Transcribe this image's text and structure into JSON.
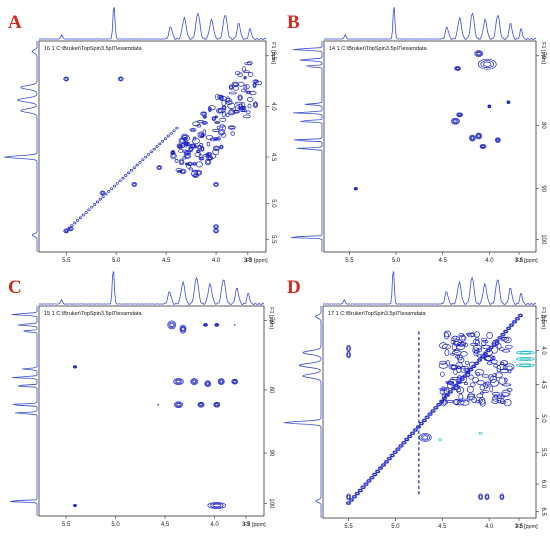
{
  "panels": [
    {
      "label": "A",
      "header": "16  1  C:\\Bruker\\TopSpin3.5pl7\\examdata",
      "f2_axis_label": "F2 [ppm]",
      "f1_axis_label": "F1 [ppm]",
      "f2_ticks": [
        "5.5",
        "5.0",
        "4.5",
        "4.0",
        "3.5"
      ],
      "f1_ticks": [
        "3.5",
        "4.0",
        "4.5",
        "5.0",
        "5.5"
      ]
    },
    {
      "label": "B",
      "header": "14  1  C:\\Bruker\\TopSpin3.5pl7\\examdata",
      "f2_axis_label": "F2 [ppm]",
      "f1_axis_label": "F1 [ppm]",
      "f2_ticks": [
        "5.5",
        "5.0",
        "4.5",
        "4.0",
        "3.5"
      ],
      "f1_ticks": [
        "70",
        "80",
        "90",
        "100"
      ]
    },
    {
      "label": "C",
      "header": "15  1  C:\\Bruker\\TopSpin3.5pl7\\examdata",
      "f2_axis_label": "F2 [ppm]",
      "f1_axis_label": "F1 [ppm]",
      "f2_ticks": [
        "5.5",
        "5.0",
        "4.5",
        "4.0",
        "3.5"
      ],
      "f1_ticks": [
        "70",
        "80",
        "90",
        "100"
      ]
    },
    {
      "label": "D",
      "header": "17  1  C:\\Bruker\\TopSpin3.5pl7\\examdata",
      "f2_axis_label": "F2 [ppm]",
      "f1_axis_label": "F1 [ppm]",
      "f2_ticks": [
        "5.5",
        "5.0",
        "4.5",
        "4.0",
        "3.5"
      ],
      "f1_ticks": [
        "3.5",
        "4.0",
        "4.5",
        "5.0",
        "5.5",
        "6.0",
        "6.5"
      ]
    }
  ],
  "colors": {
    "contour": "#1a22c8",
    "negative_contour": "#1fb8c8",
    "label": "#d42a1e",
    "projection": "#3b4fd6"
  },
  "chart_data": [
    {
      "panel": "A",
      "type": "heatmap",
      "experiment": "COSY",
      "x_ppm_range": [
        5.8,
        3.1
      ],
      "y_ppm_range": [
        3.1,
        5.8
      ],
      "peaks": [
        {
          "x": 5.32,
          "y": 5.32
        },
        {
          "x": 5.32,
          "y": 3.6
        },
        {
          "x": 4.72,
          "y": 3.6
        },
        {
          "x": 3.6,
          "y": 5.32
        },
        {
          "x": 4.85,
          "y": 4.85
        },
        {
          "x": 4.65,
          "y": 4.65
        },
        {
          "x": 3.55,
          "y": 4.9
        },
        {
          "x": 3.9,
          "y": 3.9
        },
        {
          "x": 3.6,
          "y": 3.6
        }
      ]
    },
    {
      "panel": "B",
      "type": "heatmap",
      "experiment": "HSQC",
      "x_ppm_range": [
        5.8,
        3.1
      ],
      "y_ppm_range": [
        62,
        105
      ],
      "peaks": [
        {
          "x": 3.7,
          "y": 64
        },
        {
          "x": 4.05,
          "y": 77
        },
        {
          "x": 3.9,
          "y": 80
        },
        {
          "x": 3.75,
          "y": 82
        },
        {
          "x": 4.35,
          "y": 76
        },
        {
          "x": 5.35,
          "y": 94
        }
      ]
    },
    {
      "panel": "C",
      "type": "heatmap",
      "experiment": "HMBC",
      "x_ppm_range": [
        5.8,
        3.1
      ],
      "y_ppm_range": [
        62,
        105
      ],
      "peaks": [
        {
          "x": 4.0,
          "y": 65
        },
        {
          "x": 3.7,
          "y": 65
        },
        {
          "x": 5.3,
          "y": 73
        },
        {
          "x": 4.0,
          "y": 78
        },
        {
          "x": 3.8,
          "y": 78
        },
        {
          "x": 3.6,
          "y": 78
        },
        {
          "x": 4.0,
          "y": 82
        },
        {
          "x": 3.7,
          "y": 82
        },
        {
          "x": 5.3,
          "y": 101
        },
        {
          "x": 3.7,
          "y": 101
        }
      ]
    },
    {
      "panel": "D",
      "type": "heatmap",
      "experiment": "TOCSY",
      "x_ppm_range": [
        5.8,
        3.1
      ],
      "y_ppm_range": [
        3.1,
        6.6
      ],
      "peaks": [
        {
          "x": 5.32,
          "y": 6.35
        },
        {
          "x": 5.32,
          "y": 3.6
        },
        {
          "x": 4.78,
          "y": 4.78
        },
        {
          "x": 3.9,
          "y": 3.9
        },
        {
          "x": 3.6,
          "y": 3.6
        },
        {
          "x": 3.6,
          "y": 6.35
        }
      ]
    }
  ]
}
